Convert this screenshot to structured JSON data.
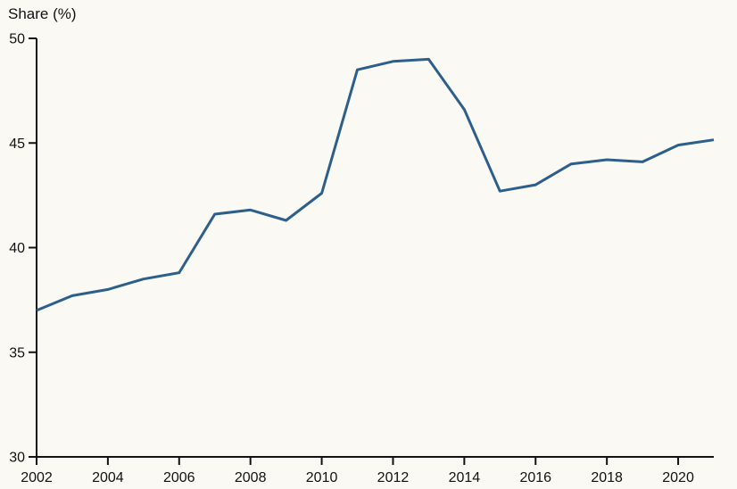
{
  "page": {
    "background_color": "#fbf9f3",
    "text_color": "#121212",
    "axis_color": "#121212"
  },
  "chart_data": {
    "type": "line",
    "title": "Share (%)",
    "ylabel": "Share (%)",
    "xlabel": "",
    "x": [
      2002,
      2003,
      2004,
      2005,
      2006,
      2007,
      2008,
      2009,
      2010,
      2011,
      2012,
      2013,
      2014,
      2015,
      2016,
      2017,
      2018,
      2019,
      2020,
      2021
    ],
    "series": [
      {
        "name": "Share",
        "color": "#2d5f8c",
        "values": [
          37.0,
          37.7,
          38.0,
          38.5,
          38.8,
          41.6,
          41.8,
          41.3,
          42.6,
          48.5,
          48.9,
          49.0,
          46.6,
          42.7,
          43.0,
          44.0,
          44.2,
          44.1,
          44.9,
          45.15
        ]
      }
    ],
    "xlim": [
      2002,
      2021
    ],
    "ylim": [
      30,
      50
    ],
    "x_ticks": [
      2002,
      2004,
      2006,
      2008,
      2010,
      2012,
      2014,
      2016,
      2018,
      2020
    ],
    "y_ticks": [
      30,
      35,
      40,
      45,
      50
    ],
    "grid": false,
    "legend_position": "none"
  }
}
